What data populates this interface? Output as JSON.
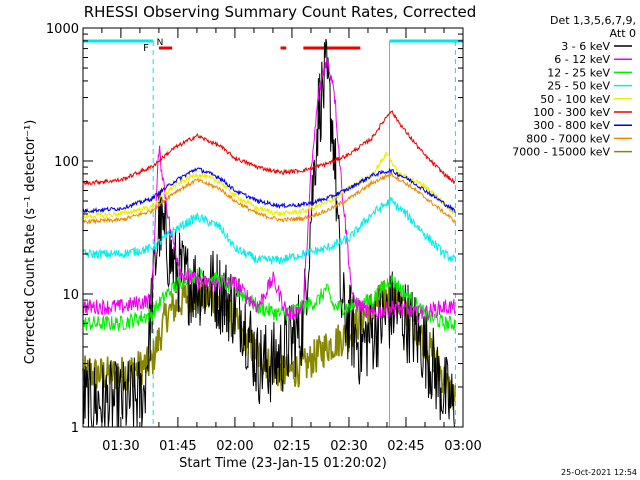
{
  "chart_data": {
    "type": "line",
    "title": "RHESSI Observing Summary Count Rates, Corrected",
    "ylabel": "Corrected Count Rate (s⁻¹ detector⁻¹)",
    "xlabel": "Start Time (23-Jan-15 01:20:02)",
    "footer_date": "25-Oct-2021 12:54",
    "x_ticks": [
      "01:30",
      "01:45",
      "02:00",
      "02:15",
      "02:30",
      "02:45",
      "03:00"
    ],
    "y_ticks": [
      "1",
      "10",
      "100",
      "1000"
    ],
    "y_scale": "log",
    "xlim": [
      "01:20:02",
      "03:00:00"
    ],
    "ylim": [
      1,
      1000
    ],
    "legend": {
      "header1": "Det 1,3,5,6,7,9,",
      "header2": "Att 0",
      "position": "top-right outside"
    },
    "flags": {
      "night_label": "N",
      "flare_label": "F",
      "night_color": "#00e5ee",
      "flare_color": "#ee0000"
    },
    "series": [
      {
        "name": "3 - 6 keV",
        "color": "#000000",
        "points": [
          [
            "01:20",
            1.6
          ],
          [
            "01:28",
            1.5
          ],
          [
            "01:36",
            1.7
          ],
          [
            "01:40",
            35
          ],
          [
            "01:44",
            16
          ],
          [
            "01:48",
            12
          ],
          [
            "01:55",
            11
          ],
          [
            "02:02",
            7
          ],
          [
            "02:06",
            3
          ],
          [
            "02:10",
            3
          ],
          [
            "02:14",
            4
          ],
          [
            "02:18",
            6
          ],
          [
            "02:20",
            40
          ],
          [
            "02:22",
            250
          ],
          [
            "02:24",
            420
          ],
          [
            "02:26",
            150
          ],
          [
            "02:28",
            8
          ],
          [
            "02:33",
            4
          ],
          [
            "02:38",
            6
          ],
          [
            "02:42",
            8
          ],
          [
            "02:46",
            6
          ],
          [
            "02:50",
            4
          ],
          [
            "02:55",
            1.8
          ],
          [
            "02:58",
            1.3
          ]
        ]
      },
      {
        "name": "6 - 12 keV",
        "color": "#ee00ee",
        "points": [
          [
            "01:20",
            8
          ],
          [
            "01:30",
            8
          ],
          [
            "01:38",
            9
          ],
          [
            "01:40",
            125
          ],
          [
            "01:43",
            30
          ],
          [
            "01:46",
            14
          ],
          [
            "01:52",
            12
          ],
          [
            "02:00",
            12
          ],
          [
            "02:06",
            8
          ],
          [
            "02:10",
            13
          ],
          [
            "02:14",
            7
          ],
          [
            "02:18",
            8
          ],
          [
            "02:20",
            80
          ],
          [
            "02:22",
            320
          ],
          [
            "02:24",
            580
          ],
          [
            "02:26",
            380
          ],
          [
            "02:28",
            70
          ],
          [
            "02:31",
            9
          ],
          [
            "02:36",
            7
          ],
          [
            "02:42",
            8
          ],
          [
            "02:48",
            7
          ],
          [
            "02:55",
            8
          ],
          [
            "02:58",
            8
          ]
        ]
      },
      {
        "name": "12 - 25 keV",
        "color": "#00ee00",
        "points": [
          [
            "01:20",
            6
          ],
          [
            "01:30",
            6
          ],
          [
            "01:38",
            7
          ],
          [
            "01:42",
            10
          ],
          [
            "01:48",
            14
          ],
          [
            "01:55",
            13
          ],
          [
            "02:00",
            11
          ],
          [
            "02:06",
            8
          ],
          [
            "02:12",
            7
          ],
          [
            "02:18",
            8
          ],
          [
            "02:22",
            9
          ],
          [
            "02:24",
            11
          ],
          [
            "02:26",
            8
          ],
          [
            "02:30",
            8
          ],
          [
            "02:36",
            9
          ],
          [
            "02:41",
            13
          ],
          [
            "02:45",
            10
          ],
          [
            "02:50",
            7
          ],
          [
            "02:55",
            6
          ],
          [
            "02:58",
            6
          ]
        ]
      },
      {
        "name": "25 - 50 keV",
        "color": "#00eeee",
        "points": [
          [
            "01:20",
            20
          ],
          [
            "01:30",
            20
          ],
          [
            "01:38",
            22
          ],
          [
            "01:44",
            30
          ],
          [
            "01:50",
            38
          ],
          [
            "01:56",
            32
          ],
          [
            "02:00",
            22
          ],
          [
            "02:06",
            18
          ],
          [
            "02:12",
            18
          ],
          [
            "02:18",
            20
          ],
          [
            "02:24",
            22
          ],
          [
            "02:30",
            26
          ],
          [
            "02:36",
            40
          ],
          [
            "02:41",
            50
          ],
          [
            "02:45",
            40
          ],
          [
            "02:50",
            28
          ],
          [
            "02:55",
            20
          ],
          [
            "02:58",
            18
          ]
        ]
      },
      {
        "name": "50 - 100 keV",
        "color": "#eeee00",
        "points": [
          [
            "01:20",
            38
          ],
          [
            "01:30",
            40
          ],
          [
            "01:38",
            45
          ],
          [
            "01:44",
            65
          ],
          [
            "01:50",
            80
          ],
          [
            "01:56",
            70
          ],
          [
            "02:00",
            55
          ],
          [
            "02:06",
            44
          ],
          [
            "02:12",
            40
          ],
          [
            "02:18",
            42
          ],
          [
            "02:24",
            48
          ],
          [
            "02:30",
            62
          ],
          [
            "02:36",
            78
          ],
          [
            "02:40",
            115
          ],
          [
            "02:43",
            80
          ],
          [
            "02:50",
            65
          ],
          [
            "02:55",
            48
          ],
          [
            "02:58",
            40
          ]
        ]
      },
      {
        "name": "100 - 300 keV",
        "color": "#ee0000",
        "points": [
          [
            "01:20",
            68
          ],
          [
            "01:30",
            72
          ],
          [
            "01:38",
            90
          ],
          [
            "01:44",
            125
          ],
          [
            "01:50",
            155
          ],
          [
            "01:56",
            130
          ],
          [
            "02:00",
            105
          ],
          [
            "02:06",
            90
          ],
          [
            "02:12",
            82
          ],
          [
            "02:18",
            85
          ],
          [
            "02:24",
            95
          ],
          [
            "02:30",
            112
          ],
          [
            "02:36",
            148
          ],
          [
            "02:41",
            240
          ],
          [
            "02:45",
            165
          ],
          [
            "02:50",
            110
          ],
          [
            "02:55",
            80
          ],
          [
            "02:58",
            68
          ]
        ]
      },
      {
        "name": "300 - 800 keV",
        "color": "#0000ee",
        "points": [
          [
            "01:20",
            42
          ],
          [
            "01:30",
            44
          ],
          [
            "01:38",
            52
          ],
          [
            "01:44",
            70
          ],
          [
            "01:50",
            88
          ],
          [
            "01:56",
            75
          ],
          [
            "02:00",
            60
          ],
          [
            "02:06",
            50
          ],
          [
            "02:12",
            46
          ],
          [
            "02:18",
            47
          ],
          [
            "02:24",
            52
          ],
          [
            "02:30",
            62
          ],
          [
            "02:36",
            78
          ],
          [
            "02:41",
            85
          ],
          [
            "02:46",
            72
          ],
          [
            "02:52",
            55
          ],
          [
            "02:58",
            42
          ]
        ]
      },
      {
        "name": "800 - 7000 keV",
        "color": "#ee8800",
        "points": [
          [
            "01:20",
            35
          ],
          [
            "01:30",
            36
          ],
          [
            "01:38",
            42
          ],
          [
            "01:44",
            58
          ],
          [
            "01:50",
            72
          ],
          [
            "01:56",
            62
          ],
          [
            "02:00",
            50
          ],
          [
            "02:06",
            40
          ],
          [
            "02:12",
            36
          ],
          [
            "02:18",
            37
          ],
          [
            "02:24",
            42
          ],
          [
            "02:30",
            52
          ],
          [
            "02:36",
            68
          ],
          [
            "02:41",
            80
          ],
          [
            "02:46",
            65
          ],
          [
            "02:52",
            48
          ],
          [
            "02:58",
            35
          ]
        ]
      },
      {
        "name": "7000 - 15000 keV",
        "color": "#888800",
        "points": [
          [
            "01:20",
            2.5
          ],
          [
            "01:30",
            2.5
          ],
          [
            "01:38",
            3
          ],
          [
            "01:42",
            7
          ],
          [
            "01:48",
            10
          ],
          [
            "01:55",
            9
          ],
          [
            "02:00",
            6
          ],
          [
            "02:06",
            3.5
          ],
          [
            "02:12",
            2.5
          ],
          [
            "02:18",
            2.8
          ],
          [
            "02:24",
            4
          ],
          [
            "02:30",
            5
          ],
          [
            "02:36",
            8
          ],
          [
            "02:41",
            10
          ],
          [
            "02:46",
            7
          ],
          [
            "02:52",
            3.5
          ],
          [
            "02:56",
            2
          ],
          [
            "02:58",
            1.6
          ]
        ]
      }
    ]
  }
}
